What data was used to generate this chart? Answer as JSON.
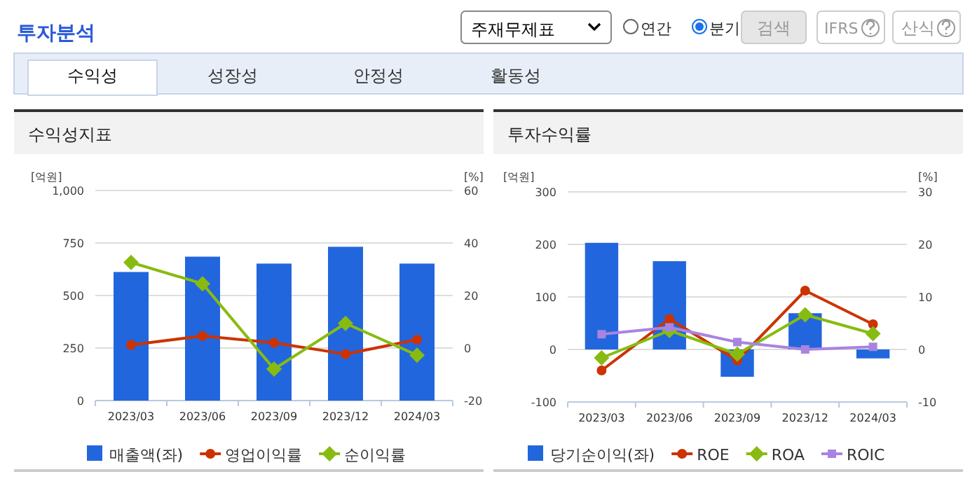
{
  "chart_data": [
    {
      "type": "bar",
      "title": "수익성지표",
      "ylabel": "[억원]",
      "y2label": "[%]",
      "categories": [
        "2023/03",
        "2023/06",
        "2023/09",
        "2023/12",
        "2024/03"
      ],
      "series": [
        {
          "name": "매출액(좌)",
          "color": "#2266dd",
          "values": [
            612,
            685,
            652,
            732,
            652
          ]
        },
        {
          "name": "영업이익률",
          "type": "line",
          "axis": "y2",
          "marker": "circle",
          "color": "#cc3300",
          "values": [
            1.2,
            4.6,
            2.0,
            -2.3,
            3.2
          ]
        },
        {
          "name": "순이익률",
          "type": "line",
          "axis": "y2",
          "marker": "diamond",
          "color": "#88bb11",
          "values": [
            32.6,
            24.5,
            -8.0,
            9.4,
            -2.7
          ]
        }
      ],
      "ylim": [
        0,
        1000
      ],
      "yticks": [
        0,
        250,
        500,
        750,
        {
          "value": 1000,
          "label": "1,000"
        }
      ],
      "y2lim": [
        -20,
        60
      ],
      "y2ticks": [
        -20,
        0,
        20,
        40,
        60
      ],
      "grid": "y",
      "legend": "bottom",
      "annotations": [
        "투자분석",
        "주재무제표",
        "연간",
        "분기",
        "검색",
        "IFRS",
        "산식",
        "수익성",
        "성장성",
        "안정성",
        "활동성"
      ]
    },
    {
      "type": "bar",
      "title": "투자수익률",
      "ylabel": "[억원]",
      "y2label": "[%]",
      "categories": [
        "2023/03",
        "2023/06",
        "2023/09",
        "2023/12",
        "2024/03"
      ],
      "series": [
        {
          "name": "당기순이익(좌)",
          "color": "#2266dd",
          "values": [
            203,
            168,
            -52,
            69,
            -17
          ]
        },
        {
          "name": "ROE",
          "type": "line",
          "axis": "y2",
          "marker": "circle",
          "color": "#cc3300",
          "values": [
            -4.0,
            5.8,
            -2.1,
            11.2,
            4.8
          ]
        },
        {
          "name": "ROA",
          "type": "line",
          "axis": "y2",
          "marker": "diamond",
          "color": "#88bb11",
          "values": [
            -1.6,
            3.6,
            -0.9,
            6.6,
            3.0
          ]
        },
        {
          "name": "ROIC",
          "type": "line",
          "axis": "y2",
          "marker": "square",
          "color": "#a884e0",
          "values": [
            2.9,
            4.2,
            1.4,
            0.0,
            0.5
          ]
        }
      ],
      "ylim": [
        -100,
        300
      ],
      "yticks": [
        -100,
        0,
        100,
        200,
        300
      ],
      "y2lim": [
        -10,
        30
      ],
      "y2ticks": [
        -10,
        0,
        10,
        20,
        30
      ],
      "grid": "y",
      "legend": "bottom"
    }
  ]
}
